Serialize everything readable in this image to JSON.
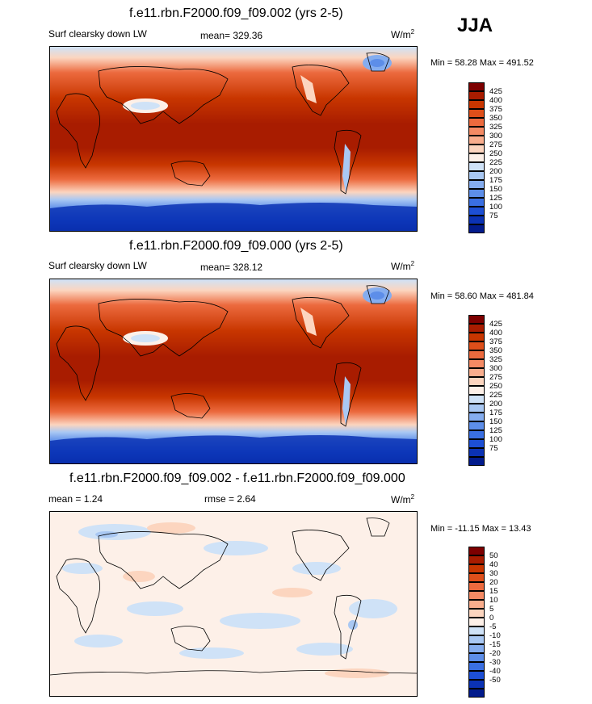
{
  "season": "JJA",
  "units_label": "W/m",
  "units_exp": "2",
  "panels": [
    {
      "title": "f.e11.rbn.F2000.f09_f09.002 (yrs 2-5)",
      "left_label": "Surf clearsky down LW",
      "stat_label": "mean= 329.36",
      "minmax": "Min =  58.28 Max = 491.52"
    },
    {
      "title": "f.e11.rbn.F2000.f09_f09.000 (yrs 2-5)",
      "left_label": "Surf clearsky down LW",
      "stat_label": "mean= 328.12",
      "minmax": "Min =  58.60 Max = 481.84"
    },
    {
      "title": "f.e11.rbn.F2000.f09_f09.002 - f.e11.rbn.F2000.f09_f09.000",
      "left_label": "mean =   1.24",
      "stat_label": "rmse =   2.64",
      "minmax": "Min = -11.15 Max =  13.43"
    }
  ],
  "colors": {
    "abs": [
      "#7d0000",
      "#a81c00",
      "#c83600",
      "#de4f1a",
      "#ec6a3e",
      "#f48a64",
      "#f9ad8d",
      "#fcd5bf",
      "#fdf0e8",
      "#cfe2f7",
      "#a9c8f3",
      "#85adef",
      "#5d8ee9",
      "#3a6fe2",
      "#1d4fd4",
      "#0b32b4",
      "#021b8c"
    ],
    "diff": [
      "#7d0000",
      "#a81c00",
      "#c83600",
      "#de4f1a",
      "#ec6a3e",
      "#f48a64",
      "#f9ad8d",
      "#fcd5bf",
      "#fdf0e8",
      "#cfe2f7",
      "#a9c8f3",
      "#85adef",
      "#5d8ee9",
      "#3a6fe2",
      "#1d4fd4",
      "#0b32b4",
      "#021b8c"
    ]
  },
  "chart_data": [
    {
      "type": "heatmap",
      "title": "f.e11.rbn.F2000.f09_f09.002 (yrs 2-5)",
      "variable": "Surf clearsky down LW",
      "mean": 329.36,
      "min": 58.28,
      "max": 491.52,
      "units": "W/m2",
      "levels": [
        425,
        400,
        375,
        350,
        325,
        300,
        275,
        250,
        225,
        200,
        175,
        150,
        125,
        100,
        75
      ]
    },
    {
      "type": "heatmap",
      "title": "f.e11.rbn.F2000.f09_f09.000 (yrs 2-5)",
      "variable": "Surf clearsky down LW",
      "mean": 328.12,
      "min": 58.6,
      "max": 481.84,
      "units": "W/m2",
      "levels": [
        425,
        400,
        375,
        350,
        325,
        300,
        275,
        250,
        225,
        200,
        175,
        150,
        125,
        100,
        75
      ]
    },
    {
      "type": "heatmap",
      "title": "f.e11.rbn.F2000.f09_f09.002 - f.e11.rbn.F2000.f09_f09.000",
      "mean": 1.24,
      "rmse": 2.64,
      "min": -11.15,
      "max": 13.43,
      "units": "W/m2",
      "levels": [
        50,
        40,
        30,
        20,
        15,
        10,
        5,
        0,
        -5,
        -10,
        -15,
        -20,
        -30,
        -40,
        -50
      ]
    }
  ]
}
